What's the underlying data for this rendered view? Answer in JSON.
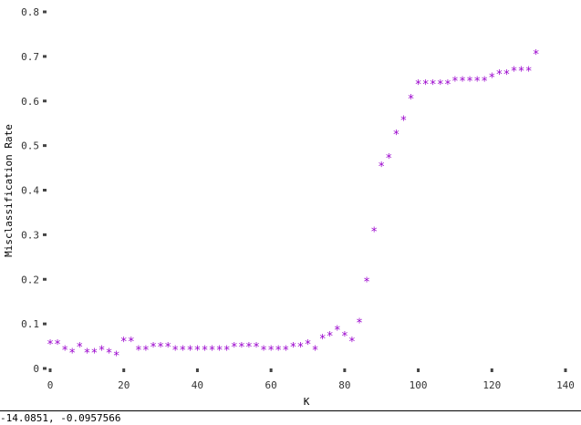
{
  "status_bar": {
    "cursor_readout": "-14.0851, -0.0957566"
  },
  "chart_data": {
    "type": "scatter",
    "xlabel": "K",
    "ylabel": "Misclassification Rate",
    "xlim": [
      0,
      140
    ],
    "ylim": [
      0,
      0.8
    ],
    "xticks": [
      0,
      20,
      40,
      60,
      80,
      100,
      120,
      140
    ],
    "xtick_labels": [
      "0",
      "20",
      "40",
      "60",
      "80",
      "100",
      "120",
      "140"
    ],
    "yticks": [
      0,
      0.1,
      0.2,
      0.3,
      0.4,
      0.5,
      0.6,
      0.7,
      0.8
    ],
    "ytick_labels": [
      "0",
      "0.1",
      "0.2",
      "0.3",
      "0.4",
      "0.5",
      "0.6",
      "0.7",
      "0.8"
    ],
    "grid": false,
    "marker": "*",
    "marker_color": "#9900cc",
    "series": [
      {
        "x": [
          0,
          2,
          4,
          6,
          8,
          10,
          12,
          14,
          16,
          18,
          20,
          22,
          24,
          26,
          28,
          30,
          32,
          34,
          36,
          38,
          40,
          42,
          44,
          46,
          48,
          50,
          52,
          54,
          56,
          58,
          60,
          62,
          64,
          66,
          68,
          70,
          72,
          74,
          76,
          78,
          80,
          82,
          84,
          86,
          88,
          90,
          92,
          94,
          96,
          98,
          100,
          102,
          104,
          106,
          108,
          110,
          112,
          114,
          116,
          118,
          120,
          122,
          124,
          126,
          128,
          130,
          132
        ],
        "y": [
          0.057,
          0.057,
          0.044,
          0.038,
          0.051,
          0.038,
          0.038,
          0.044,
          0.038,
          0.032,
          0.063,
          0.063,
          0.044,
          0.044,
          0.051,
          0.051,
          0.051,
          0.044,
          0.044,
          0.044,
          0.044,
          0.044,
          0.044,
          0.044,
          0.044,
          0.051,
          0.051,
          0.051,
          0.051,
          0.044,
          0.044,
          0.044,
          0.044,
          0.051,
          0.051,
          0.057,
          0.044,
          0.07,
          0.076,
          0.089,
          0.076,
          0.063,
          0.105,
          0.197,
          0.31,
          0.456,
          0.475,
          0.528,
          0.56,
          0.608,
          0.64,
          0.64,
          0.64,
          0.64,
          0.64,
          0.648,
          0.648,
          0.648,
          0.648,
          0.648,
          0.656,
          0.663,
          0.663,
          0.67,
          0.67,
          0.67,
          0.708
        ]
      }
    ]
  }
}
